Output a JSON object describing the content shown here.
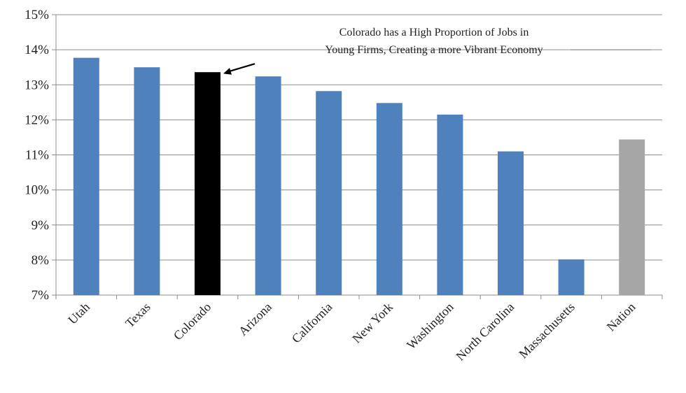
{
  "chart_data": {
    "type": "bar",
    "title": "",
    "xlabel": "",
    "ylabel": "",
    "categories": [
      "Utah",
      "Texas",
      "Colorado",
      "Arizona",
      "California",
      "New York",
      "Washington",
      "North Carolina",
      "Massachusetts",
      "Nation"
    ],
    "values": [
      13.77,
      13.5,
      13.36,
      13.24,
      12.82,
      12.48,
      12.15,
      11.1,
      8.02,
      11.44
    ],
    "bar_colors": [
      "#4f81bd",
      "#4f81bd",
      "#000000",
      "#4f81bd",
      "#4f81bd",
      "#4f81bd",
      "#4f81bd",
      "#4f81bd",
      "#4f81bd",
      "#a6a6a6"
    ],
    "ylim": [
      7,
      15
    ],
    "yticks": [
      7,
      8,
      9,
      10,
      11,
      12,
      13,
      14,
      15
    ],
    "ytick_labels": [
      "7%",
      "8%",
      "9%",
      "10%",
      "11%",
      "12%",
      "13%",
      "14%",
      "15%"
    ],
    "grid": true,
    "annotation": {
      "lines": [
        "Colorado has a High Proportion of Jobs in",
        "Young Firms, Creating a more Vibrant Economy"
      ],
      "points_to": "Colorado"
    }
  }
}
